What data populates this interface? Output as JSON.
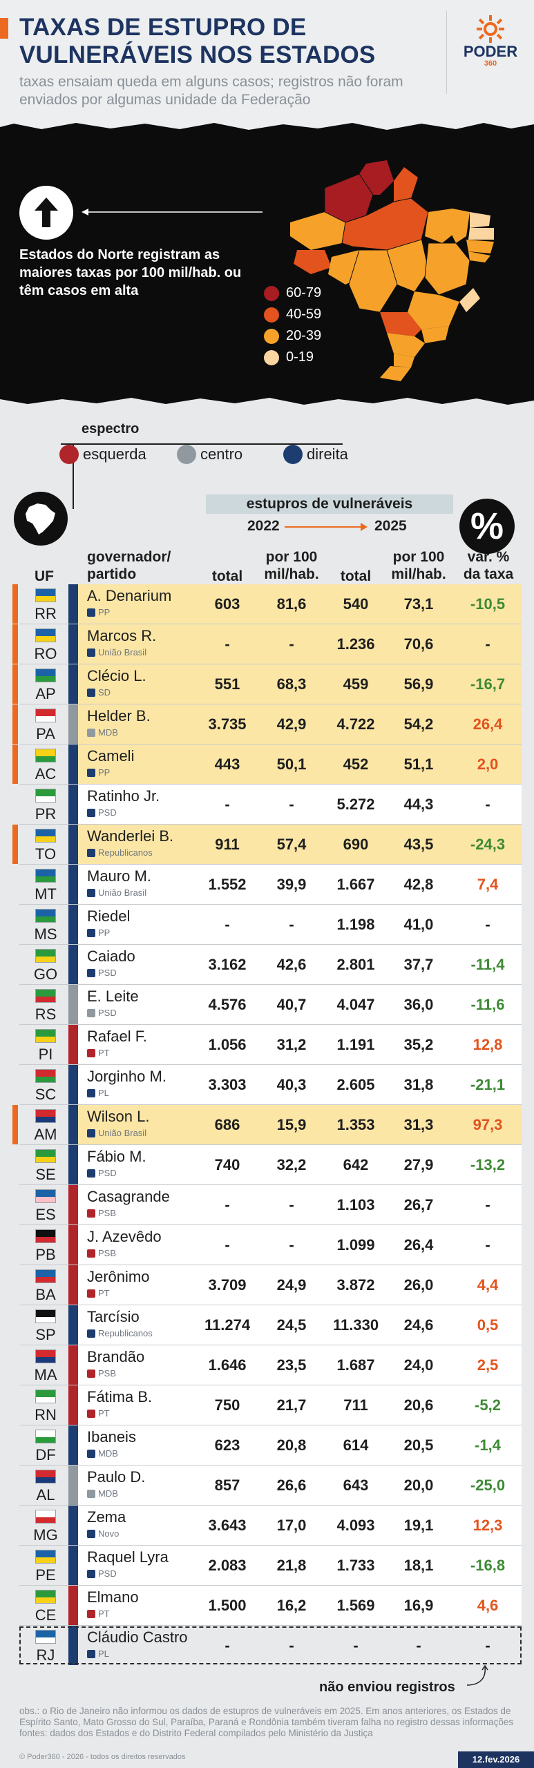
{
  "header": {
    "title": "TAXAS DE ESTUPRO DE VULNERÁVEIS NOS ESTADOS",
    "subtitle": "taxas ensaiam queda em alguns casos; registros não foram enviados por algumas unidade da Federação",
    "logo_word": "PODER",
    "logo_number": "360"
  },
  "map": {
    "callout": "Estados do Norte registram as maiores taxas por 100 mil/hab. ou têm casos em alta",
    "legend": [
      {
        "label": "60-79",
        "color": "#a81d22"
      },
      {
        "label": "40-59",
        "color": "#e2531d"
      },
      {
        "label": "20-39",
        "color": "#f6a22a"
      },
      {
        "label": "0-19",
        "color": "#fbd5a0"
      }
    ]
  },
  "spectrum": {
    "title": "espectro",
    "items": [
      {
        "label": "esquerda",
        "color": "#b0252a"
      },
      {
        "label": "centro",
        "color": "#8f999f"
      },
      {
        "label": "direita",
        "color": "#1d3c70"
      }
    ]
  },
  "table_header": {
    "group": "estupros de vulneráveis",
    "year_from": "2022",
    "year_to": "2025",
    "uf": "UF",
    "gov": "governador/\npartido",
    "total": "total",
    "rate": "por 100\nmil/hab.",
    "var": "var. %\nda taxa",
    "pct_symbol": "%"
  },
  "chart_data": {
    "type": "table",
    "title": "TAXAS DE ESTUPRO DE VULNERÁVEIS NOS ESTADOS",
    "columns": [
      "UF",
      "governador/partido",
      "total 2022",
      "por 100 mil/hab. 2022",
      "total 2025",
      "por 100 mil/hab. 2025",
      "var. % da taxa"
    ],
    "rows": [
      {
        "uf": "RR",
        "gov": "A. Denarium",
        "party": "PP",
        "spectrum": "direita",
        "t22": "603",
        "r22": "81,6",
        "t25": "540",
        "r25": "73,1",
        "var": "-10,5",
        "highlight": true
      },
      {
        "uf": "RO",
        "gov": "Marcos R.",
        "party": "União Brasil",
        "spectrum": "direita",
        "t22": "-",
        "r22": "-",
        "t25": "1.236",
        "r25": "70,6",
        "var": "-",
        "highlight": true
      },
      {
        "uf": "AP",
        "gov": "Clécio L.",
        "party": "SD",
        "spectrum": "direita",
        "t22": "551",
        "r22": "68,3",
        "t25": "459",
        "r25": "56,9",
        "var": "-16,7",
        "highlight": true
      },
      {
        "uf": "PA",
        "gov": "Helder B.",
        "party": "MDB",
        "spectrum": "centro",
        "t22": "3.735",
        "r22": "42,9",
        "t25": "4.722",
        "r25": "54,2",
        "var": "26,4",
        "highlight": true
      },
      {
        "uf": "AC",
        "gov": "Cameli",
        "party": "PP",
        "spectrum": "direita",
        "t22": "443",
        "r22": "50,1",
        "t25": "452",
        "r25": "51,1",
        "var": "2,0",
        "highlight": true
      },
      {
        "uf": "PR",
        "gov": "Ratinho Jr.",
        "party": "PSD",
        "spectrum": "direita",
        "t22": "-",
        "r22": "-",
        "t25": "5.272",
        "r25": "44,3",
        "var": "-",
        "highlight": false
      },
      {
        "uf": "TO",
        "gov": "Wanderlei B.",
        "party": "Republicanos",
        "spectrum": "direita",
        "t22": "911",
        "r22": "57,4",
        "t25": "690",
        "r25": "43,5",
        "var": "-24,3",
        "highlight": true
      },
      {
        "uf": "MT",
        "gov": "Mauro M.",
        "party": "União Brasil",
        "spectrum": "direita",
        "t22": "1.552",
        "r22": "39,9",
        "t25": "1.667",
        "r25": "42,8",
        "var": "7,4",
        "highlight": false
      },
      {
        "uf": "MS",
        "gov": "Riedel",
        "party": "PP",
        "spectrum": "direita",
        "t22": "-",
        "r22": "-",
        "t25": "1.198",
        "r25": "41,0",
        "var": "-",
        "highlight": false
      },
      {
        "uf": "GO",
        "gov": "Caiado",
        "party": "PSD",
        "spectrum": "direita",
        "t22": "3.162",
        "r22": "42,6",
        "t25": "2.801",
        "r25": "37,7",
        "var": "-11,4",
        "highlight": false
      },
      {
        "uf": "RS",
        "gov": "E. Leite",
        "party": "PSD",
        "spectrum": "centro",
        "t22": "4.576",
        "r22": "40,7",
        "t25": "4.047",
        "r25": "36,0",
        "var": "-11,6",
        "highlight": false
      },
      {
        "uf": "PI",
        "gov": "Rafael F.",
        "party": "PT",
        "spectrum": "esquerda",
        "t22": "1.056",
        "r22": "31,2",
        "t25": "1.191",
        "r25": "35,2",
        "var": "12,8",
        "highlight": false
      },
      {
        "uf": "SC",
        "gov": "Jorginho M.",
        "party": "PL",
        "spectrum": "direita",
        "t22": "3.303",
        "r22": "40,3",
        "t25": "2.605",
        "r25": "31,8",
        "var": "-21,1",
        "highlight": false
      },
      {
        "uf": "AM",
        "gov": "Wilson L.",
        "party": "União Brasil",
        "spectrum": "direita",
        "t22": "686",
        "r22": "15,9",
        "t25": "1.353",
        "r25": "31,3",
        "var": "97,3",
        "highlight": true
      },
      {
        "uf": "SE",
        "gov": "Fábio M.",
        "party": "PSD",
        "spectrum": "direita",
        "t22": "740",
        "r22": "32,2",
        "t25": "642",
        "r25": "27,9",
        "var": "-13,2",
        "highlight": false
      },
      {
        "uf": "ES",
        "gov": "Casagrande",
        "party": "PSB",
        "spectrum": "esquerda",
        "t22": "-",
        "r22": "-",
        "t25": "1.103",
        "r25": "26,7",
        "var": "-",
        "highlight": false
      },
      {
        "uf": "PB",
        "gov": "J. Azevêdo",
        "party": "PSB",
        "spectrum": "esquerda",
        "t22": "-",
        "r22": "-",
        "t25": "1.099",
        "r25": "26,4",
        "var": "-",
        "highlight": false
      },
      {
        "uf": "BA",
        "gov": "Jerônimo",
        "party": "PT",
        "spectrum": "esquerda",
        "t22": "3.709",
        "r22": "24,9",
        "t25": "3.872",
        "r25": "26,0",
        "var": "4,4",
        "highlight": false
      },
      {
        "uf": "SP",
        "gov": "Tarcísio",
        "party": "Republicanos",
        "spectrum": "direita",
        "t22": "11.274",
        "r22": "24,5",
        "t25": "11.330",
        "r25": "24,6",
        "var": "0,5",
        "highlight": false
      },
      {
        "uf": "MA",
        "gov": "Brandão",
        "party": "PSB",
        "spectrum": "esquerda",
        "t22": "1.646",
        "r22": "23,5",
        "t25": "1.687",
        "r25": "24,0",
        "var": "2,5",
        "highlight": false
      },
      {
        "uf": "RN",
        "gov": "Fátima B.",
        "party": "PT",
        "spectrum": "esquerda",
        "t22": "750",
        "r22": "21,7",
        "t25": "711",
        "r25": "20,6",
        "var": "-5,2",
        "highlight": false
      },
      {
        "uf": "DF",
        "gov": "Ibaneis",
        "party": "MDB",
        "spectrum": "direita",
        "t22": "623",
        "r22": "20,8",
        "t25": "614",
        "r25": "20,5",
        "var": "-1,4",
        "highlight": false
      },
      {
        "uf": "AL",
        "gov": "Paulo D.",
        "party": "MDB",
        "spectrum": "centro",
        "t22": "857",
        "r22": "26,6",
        "t25": "643",
        "r25": "20,0",
        "var": "-25,0",
        "highlight": false
      },
      {
        "uf": "MG",
        "gov": "Zema",
        "party": "Novo",
        "spectrum": "direita",
        "t22": "3.643",
        "r22": "17,0",
        "t25": "4.093",
        "r25": "19,1",
        "var": "12,3",
        "highlight": false
      },
      {
        "uf": "PE",
        "gov": "Raquel Lyra",
        "party": "PSD",
        "spectrum": "direita",
        "t22": "2.083",
        "r22": "21,8",
        "t25": "1.733",
        "r25": "18,1",
        "var": "-16,8",
        "highlight": false
      },
      {
        "uf": "CE",
        "gov": "Elmano",
        "party": "PT",
        "spectrum": "esquerda",
        "t22": "1.500",
        "r22": "16,2",
        "t25": "1.569",
        "r25": "16,9",
        "var": "4,6",
        "highlight": false
      },
      {
        "uf": "RJ",
        "gov": "Cláudio Castro",
        "party": "PL",
        "spectrum": "direita",
        "t22": "-",
        "r22": "-",
        "t25": "-",
        "r25": "-",
        "var": "-",
        "highlight": false,
        "dashed": true
      }
    ]
  },
  "colors": {
    "highlight_row": "#fbe6a6",
    "plain_row": "#ffffff",
    "positive_var": "#e2531d",
    "negative_var": "#3d8a34",
    "neutral_var": "#1e1e1e"
  },
  "footer": {
    "not_sent": "não enviou registros",
    "obs": "obs.: o Rio de Janeiro não informou os dados de estupros de vulneráveis em 2025. Em anos anteriores, os Estados de Espírito Santo, Mato Grosso do Sul, Paraíba, Paraná e Rondônia também tiveram falha no registro dessas informações",
    "sources": "fontes: dados dos Estados e do Distrito Federal compilados pelo Ministério da Justiça",
    "copyright": "© Poder360 - 2026 - todos os direitos reservados",
    "date": "12.fev.2026"
  }
}
